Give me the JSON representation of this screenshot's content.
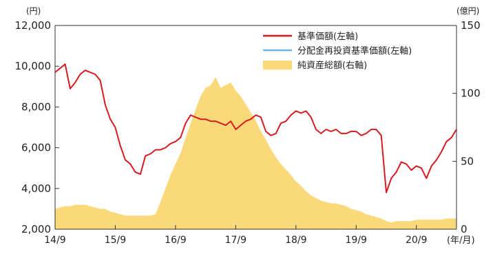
{
  "chart_data": {
    "type": "line",
    "left_unit": "(円)",
    "right_unit": "(億円)",
    "x_unit": "(年/月)",
    "x_tick_labels": [
      "14/9",
      "15/9",
      "16/9",
      "17/9",
      "18/9",
      "19/9",
      "20/9"
    ],
    "y_left_ticks": [
      "2,000",
      "4,000",
      "6,000",
      "8,000",
      "10,000",
      "12,000"
    ],
    "y_right_ticks": [
      "0",
      "50",
      "100",
      "150"
    ],
    "ylim_left": [
      2000,
      12000
    ],
    "ylim_right": [
      0,
      150
    ],
    "x_start": "2014-09",
    "x_end": "2021-05",
    "legend": {
      "nav": "基準価額(左軸)",
      "reinvested": "分配金再投資基準価額(左軸)",
      "assets": "純資産総額(右軸)"
    },
    "colors": {
      "nav": "#d71920",
      "reinvested": "#6ab6e8",
      "assets": "#fad97a",
      "axis": "#333333"
    },
    "series": [
      {
        "key": "nav",
        "name": "基準価額(左軸)",
        "axis": "left",
        "x": [
          "2014-09",
          "2014-10",
          "2014-11",
          "2014-12",
          "2015-01",
          "2015-02",
          "2015-03",
          "2015-04",
          "2015-05",
          "2015-06",
          "2015-07",
          "2015-08",
          "2015-09",
          "2015-10",
          "2015-11",
          "2015-12",
          "2016-01",
          "2016-02",
          "2016-03",
          "2016-04",
          "2016-05",
          "2016-06",
          "2016-07",
          "2016-08",
          "2016-09",
          "2016-10",
          "2016-11",
          "2016-12",
          "2017-01",
          "2017-02",
          "2017-03",
          "2017-04",
          "2017-05",
          "2017-06",
          "2017-07",
          "2017-08",
          "2017-09",
          "2017-10",
          "2017-11",
          "2017-12",
          "2018-01",
          "2018-02",
          "2018-03",
          "2018-04",
          "2018-05",
          "2018-06",
          "2018-07",
          "2018-08",
          "2018-09",
          "2018-10",
          "2018-11",
          "2018-12",
          "2019-01",
          "2019-02",
          "2019-03",
          "2019-04",
          "2019-05",
          "2019-06",
          "2019-07",
          "2019-08",
          "2019-09",
          "2019-10",
          "2019-11",
          "2019-12",
          "2020-01",
          "2020-02",
          "2020-03",
          "2020-04",
          "2020-05",
          "2020-06",
          "2020-07",
          "2020-08",
          "2020-09",
          "2020-10",
          "2020-11",
          "2020-12",
          "2021-01",
          "2021-02",
          "2021-03",
          "2021-04",
          "2021-05"
        ],
        "values": [
          9700,
          9900,
          10100,
          8900,
          9200,
          9600,
          9800,
          9700,
          9600,
          9300,
          8100,
          7400,
          7000,
          6100,
          5400,
          5200,
          4800,
          4700,
          5600,
          5700,
          5900,
          5900,
          6000,
          6200,
          6300,
          6500,
          7200,
          7600,
          7500,
          7400,
          7400,
          7300,
          7300,
          7200,
          7100,
          7300,
          6900,
          7100,
          7300,
          7400,
          7600,
          7500,
          6800,
          6600,
          6700,
          7200,
          7300,
          7600,
          7800,
          7700,
          7800,
          7500,
          6900,
          6700,
          6900,
          6800,
          6900,
          6700,
          6700,
          6800,
          6800,
          6600,
          6700,
          6900,
          6900,
          6600,
          3800,
          4500,
          4800,
          5300,
          5200,
          4900,
          5100,
          5000,
          4500,
          5100,
          5400,
          5800,
          6300,
          6500,
          6900
        ]
      },
      {
        "key": "reinvested",
        "name": "分配金再投資基準価額(左軸)",
        "axis": "left",
        "x": [],
        "values": []
      },
      {
        "key": "assets",
        "name": "純資産総額(右軸)",
        "axis": "right",
        "x": [
          "2014-09",
          "2014-10",
          "2014-11",
          "2014-12",
          "2015-01",
          "2015-02",
          "2015-03",
          "2015-04",
          "2015-05",
          "2015-06",
          "2015-07",
          "2015-08",
          "2015-09",
          "2015-10",
          "2015-11",
          "2015-12",
          "2016-01",
          "2016-02",
          "2016-03",
          "2016-04",
          "2016-05",
          "2016-06",
          "2016-07",
          "2016-08",
          "2016-09",
          "2016-10",
          "2016-11",
          "2016-12",
          "2017-01",
          "2017-02",
          "2017-03",
          "2017-04",
          "2017-05",
          "2017-06",
          "2017-07",
          "2017-08",
          "2017-09",
          "2017-10",
          "2017-11",
          "2017-12",
          "2018-01",
          "2018-02",
          "2018-03",
          "2018-04",
          "2018-05",
          "2018-06",
          "2018-07",
          "2018-08",
          "2018-09",
          "2018-10",
          "2018-11",
          "2018-12",
          "2019-01",
          "2019-02",
          "2019-03",
          "2019-04",
          "2019-05",
          "2019-06",
          "2019-07",
          "2019-08",
          "2019-09",
          "2019-10",
          "2019-11",
          "2019-12",
          "2020-01",
          "2020-02",
          "2020-03",
          "2020-04",
          "2020-05",
          "2020-06",
          "2020-07",
          "2020-08",
          "2020-09",
          "2020-10",
          "2020-11",
          "2020-12",
          "2021-01",
          "2021-02",
          "2021-03",
          "2021-04",
          "2021-05"
        ],
        "values": [
          15,
          16,
          17,
          17,
          18,
          18,
          18,
          17,
          16,
          15,
          15,
          13,
          12,
          11,
          10,
          10,
          10,
          10,
          10,
          10,
          11,
          20,
          30,
          40,
          48,
          56,
          67,
          78,
          88,
          98,
          104,
          106,
          112,
          104,
          106,
          108,
          102,
          98,
          92,
          86,
          80,
          72,
          66,
          59,
          53,
          48,
          44,
          40,
          35,
          32,
          28,
          25,
          23,
          21,
          20,
          19,
          19,
          18,
          17,
          15,
          14,
          13,
          11,
          10,
          9,
          8,
          6,
          5,
          6,
          6,
          6,
          6,
          7,
          7,
          7,
          7,
          7,
          7,
          8,
          8,
          8
        ]
      }
    ]
  }
}
